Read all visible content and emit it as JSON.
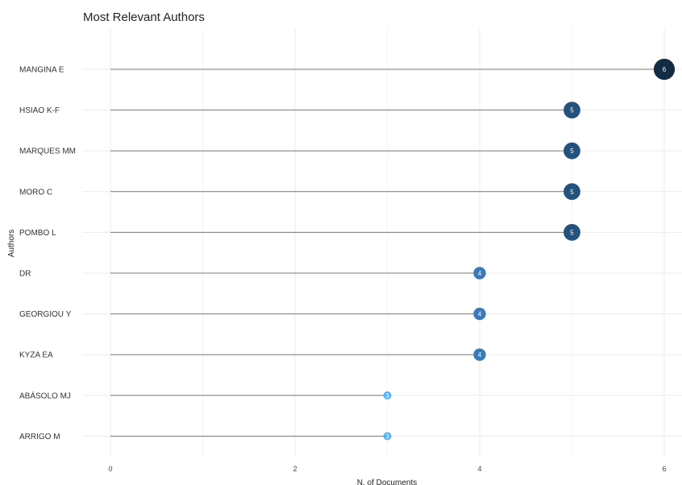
{
  "chart_data": {
    "type": "scatter",
    "title": "Most Relevant Authors",
    "xlabel": "N. of Documents",
    "ylabel": "Authors",
    "xlim": [
      0,
      6
    ],
    "xticks": [
      0,
      2,
      4,
      6
    ],
    "grid": true,
    "categories": [
      "MANGINA E",
      "HSIAO K-F",
      "MARQUES MM",
      "MORO C",
      "POMBO L",
      "DR",
      "GEORGIOU Y",
      "KYZA EA",
      "ABÁSOLO MJ",
      "ARRIGO M"
    ],
    "values": [
      6,
      5,
      5,
      5,
      5,
      4,
      4,
      4,
      3,
      3
    ],
    "point_labels": [
      "6",
      "5",
      "5",
      "5",
      "5",
      "4",
      "4",
      "4",
      "3",
      "3"
    ],
    "colors": {
      "3": "#56b1f7",
      "4": "#3a7ab8",
      "5": "#24527e",
      "6": "#132b43",
      "stem": "#7a7a7a",
      "grid": "#ebebeb"
    }
  }
}
